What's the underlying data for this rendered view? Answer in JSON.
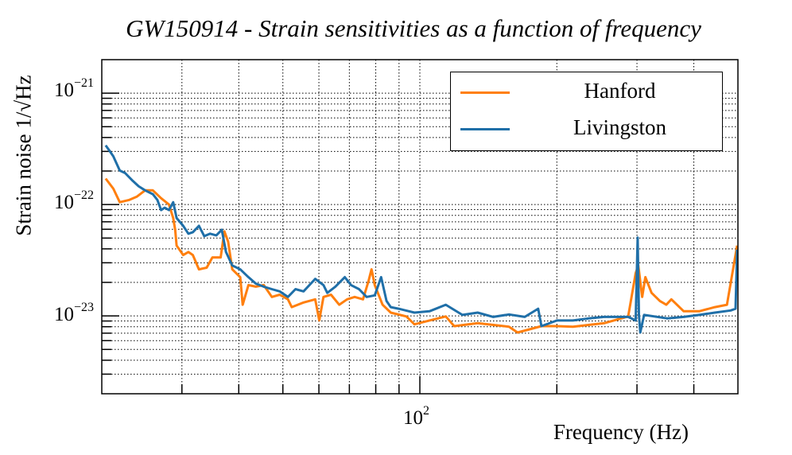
{
  "chart_data": {
    "type": "line",
    "title": "GW150914 - Strain sensitivities as a function of frequency",
    "xlabel": "Frequency (Hz)",
    "ylabel": "Strain noise 1/√Hz",
    "xscale": "log",
    "yscale": "log",
    "xlim": [
      20,
      500
    ],
    "ylim": [
      2e-24,
      2e-21
    ],
    "grid": true,
    "legend_position": "top-right",
    "x_ticks": [
      {
        "base": "10",
        "exp": "2",
        "value": 100
      }
    ],
    "y_ticks": [
      {
        "base": "10",
        "exp": "−21",
        "value": 1e-21
      },
      {
        "base": "10",
        "exp": "−22",
        "value": 1e-22
      },
      {
        "base": "10",
        "exp": "−23",
        "value": 1e-23
      }
    ],
    "series": [
      {
        "name": "Hanford",
        "color": "#ff7f0e",
        "x": [
          20.4,
          21.2,
          21.9,
          23.0,
          23.9,
          24.9,
          25.9,
          27.0,
          28.1,
          28.7,
          29.0,
          29.2,
          30.2,
          31.0,
          31.7,
          32.7,
          34.0,
          35.0,
          36.5,
          37.2,
          37.9,
          38.7,
          40.3,
          40.8,
          42.0,
          43.6,
          45.4,
          47.3,
          49.2,
          51.3,
          52.3,
          55.5,
          58.9,
          60.1,
          61.4,
          63.8,
          66.5,
          69.2,
          71.9,
          75.0,
          77.1,
          78.3,
          79.6,
          82.8,
          86.3,
          93.4,
          97.3,
          105,
          114,
          119,
          134,
          157,
          164,
          185,
          200,
          217,
          254,
          287,
          298,
          302,
          308,
          313,
          323,
          337,
          348,
          357,
          380,
          411,
          445,
          473,
          498
        ],
        "y": [
          1.71e-22,
          1.39e-22,
          1.05e-22,
          1.1e-22,
          1.18e-22,
          1.34e-22,
          1.34e-22,
          1.14e-22,
          1e-22,
          7.57e-23,
          5.93e-23,
          4.28e-23,
          3.52e-23,
          3.75e-23,
          3.52e-23,
          2.62e-23,
          2.71e-23,
          3.35e-23,
          3.35e-23,
          5.74e-23,
          4.64e-23,
          2.62e-23,
          2.23e-23,
          1.26e-23,
          1.89e-23,
          1.83e-23,
          1.89e-23,
          1.48e-23,
          1.55e-23,
          1.41e-23,
          1.2e-23,
          1.32e-23,
          1.41e-23,
          9.1e-24,
          1.48e-23,
          1.55e-23,
          1.26e-23,
          1.41e-23,
          1.48e-23,
          1.41e-23,
          2.05e-23,
          2.62e-23,
          1.89e-23,
          1.26e-23,
          1.07e-23,
          9.9e-24,
          8.4e-24,
          9.1e-24,
          9.9e-24,
          8.1e-24,
          8.6e-24,
          8e-24,
          7.1e-24,
          8.1e-24,
          8.1e-24,
          8e-24,
          8.6e-24,
          9.9e-24,
          2.42e-23,
          2.84e-23,
          1.48e-23,
          2.23e-23,
          1.61e-23,
          1.36e-23,
          1.26e-23,
          1.41e-23,
          1.1e-23,
          1.1e-23,
          1.2e-23,
          1.26e-23,
          4.28e-23
        ]
      },
      {
        "name": "Livingston",
        "color": "#1f6fa8",
        "x": [
          20.4,
          20.8,
          21.2,
          21.9,
          22.5,
          23.4,
          24.1,
          24.9,
          25.9,
          26.5,
          27.0,
          27.5,
          28.1,
          28.7,
          29.2,
          30.2,
          31.0,
          31.7,
          32.7,
          33.6,
          34.6,
          35.7,
          36.7,
          37.5,
          38.7,
          40.3,
          42.0,
          43.6,
          45.4,
          47.3,
          49.2,
          51.3,
          53.3,
          55.5,
          58.9,
          61.4,
          62.6,
          65.2,
          68.4,
          70.6,
          73.5,
          76.4,
          79.6,
          82.2,
          84.5,
          86.3,
          89.8,
          97.3,
          105,
          114,
          124,
          134,
          145,
          157,
          170,
          182,
          185,
          200,
          217,
          235,
          254,
          287,
          298,
          301,
          303,
          305,
          311,
          350,
          380,
          411,
          445,
          482,
          494,
          498
        ],
        "y": [
          3.4e-22,
          3.04e-22,
          2.71e-22,
          2.02e-22,
          1.92e-22,
          1.63e-22,
          1.46e-22,
          1.34e-22,
          1.24e-22,
          1.1e-22,
          8.92e-23,
          9.37e-23,
          8.92e-23,
          1.05e-22,
          7.57e-23,
          6.44e-23,
          5.47e-23,
          5.65e-23,
          6.44e-23,
          5.2e-23,
          5.47e-23,
          5.29e-23,
          5.93e-23,
          3.75e-23,
          2.84e-23,
          2.62e-23,
          2.23e-23,
          1.95e-23,
          1.83e-23,
          1.74e-23,
          1.66e-23,
          1.48e-23,
          1.74e-23,
          1.66e-23,
          2.15e-23,
          1.89e-23,
          1.61e-23,
          1.83e-23,
          2.23e-23,
          1.89e-23,
          1.74e-23,
          1.48e-23,
          1.53e-23,
          2.23e-23,
          1.36e-23,
          1.2e-23,
          1.16e-23,
          1.07e-23,
          1.1e-23,
          1.26e-23,
          1.02e-23,
          1.07e-23,
          9.8e-24,
          1.03e-23,
          9.8e-24,
          1.16e-23,
          8.1e-24,
          9.1e-24,
          9.1e-24,
          9.5e-24,
          9.8e-24,
          9.8e-24,
          9.1e-24,
          5.04e-23,
          1.02e-23,
          7.1e-24,
          1.02e-23,
          9.5e-24,
          9.8e-24,
          1.02e-23,
          1.07e-23,
          1.12e-23,
          1.16e-23,
          3.94e-23
        ]
      }
    ]
  }
}
